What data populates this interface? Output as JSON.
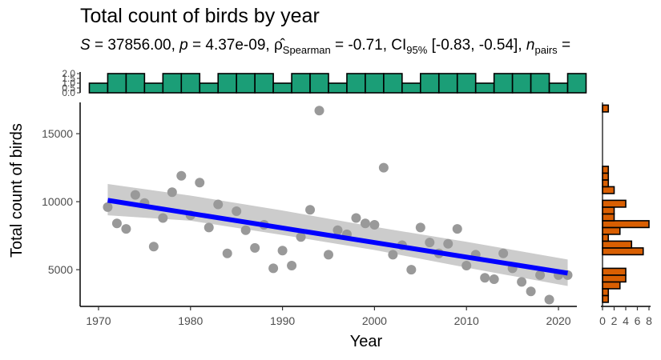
{
  "chart_data": {
    "type": "scatter",
    "title": "Total count of birds by year",
    "subtitle": {
      "s_label": "S",
      "s_value": "= 37856.00,",
      "p_label": "p",
      "p_value": "= 4.37e-09,",
      "rho_symbol": "ρ̂",
      "rho_sub": "Spearman",
      "rho_value": "= -0.71,",
      "ci_label": "CI",
      "ci_sub": "95%",
      "ci_value": "[-0.83, -0.54],",
      "n_label": "n",
      "n_sub": "pairs",
      "n_value": "="
    },
    "xlabel": "Year",
    "ylabel": "Total count of birds",
    "xlim": [
      1968,
      2022
    ],
    "ylim": [
      2300,
      17300
    ],
    "x_ticks": [
      "1970",
      "1980",
      "1990",
      "2000",
      "2010",
      "2020"
    ],
    "y_ticks": [
      "5000",
      "10000",
      "15000"
    ],
    "colors": {
      "points": "#999999",
      "trend_line": "#0000ff",
      "confidence_band": "#cccccc",
      "top_histogram": "#1b9e77",
      "right_histogram": "#d95f02"
    },
    "points": [
      {
        "x": 1971,
        "y": 9600
      },
      {
        "x": 1972,
        "y": 8400
      },
      {
        "x": 1973,
        "y": 8000
      },
      {
        "x": 1974,
        "y": 10500
      },
      {
        "x": 1975,
        "y": 9900
      },
      {
        "x": 1976,
        "y": 6700
      },
      {
        "x": 1977,
        "y": 8800
      },
      {
        "x": 1978,
        "y": 10700
      },
      {
        "x": 1979,
        "y": 11900
      },
      {
        "x": 1980,
        "y": 9000
      },
      {
        "x": 1981,
        "y": 11400
      },
      {
        "x": 1982,
        "y": 8100
      },
      {
        "x": 1983,
        "y": 9800
      },
      {
        "x": 1984,
        "y": 6200
      },
      {
        "x": 1985,
        "y": 9300
      },
      {
        "x": 1986,
        "y": 7900
      },
      {
        "x": 1987,
        "y": 6600
      },
      {
        "x": 1988,
        "y": 8300
      },
      {
        "x": 1989,
        "y": 5100
      },
      {
        "x": 1990,
        "y": 6400
      },
      {
        "x": 1991,
        "y": 5300
      },
      {
        "x": 1992,
        "y": 7400
      },
      {
        "x": 1993,
        "y": 9400
      },
      {
        "x": 1994,
        "y": 16700
      },
      {
        "x": 1995,
        "y": 6100
      },
      {
        "x": 1996,
        "y": 7900
      },
      {
        "x": 1997,
        "y": 7600
      },
      {
        "x": 1998,
        "y": 8800
      },
      {
        "x": 1999,
        "y": 8400
      },
      {
        "x": 2000,
        "y": 8300
      },
      {
        "x": 2001,
        "y": 12500
      },
      {
        "x": 2002,
        "y": 6100
      },
      {
        "x": 2003,
        "y": 6800
      },
      {
        "x": 2004,
        "y": 5000
      },
      {
        "x": 2005,
        "y": 8100
      },
      {
        "x": 2006,
        "y": 7000
      },
      {
        "x": 2007,
        "y": 6200
      },
      {
        "x": 2008,
        "y": 6900
      },
      {
        "x": 2009,
        "y": 8000
      },
      {
        "x": 2010,
        "y": 5300
      },
      {
        "x": 2011,
        "y": 6100
      },
      {
        "x": 2012,
        "y": 4400
      },
      {
        "x": 2013,
        "y": 4300
      },
      {
        "x": 2014,
        "y": 6200
      },
      {
        "x": 2015,
        "y": 5100
      },
      {
        "x": 2016,
        "y": 4100
      },
      {
        "x": 2017,
        "y": 3400
      },
      {
        "x": 2018,
        "y": 4600
      },
      {
        "x": 2019,
        "y": 2800
      },
      {
        "x": 2020,
        "y": 4600
      },
      {
        "x": 2021,
        "y": 4600
      }
    ],
    "trend_line": {
      "x": [
        1971,
        2021
      ],
      "y": [
        10100,
        4750
      ]
    },
    "confidence_band": {
      "x": [
        1971,
        1980,
        1990,
        2000,
        2010,
        2021
      ],
      "upper": [
        11300,
        10450,
        9350,
        8150,
        7050,
        5750
      ],
      "lower": [
        9000,
        8600,
        7550,
        6450,
        5150,
        3800
      ]
    },
    "top_histogram": {
      "ylim": [
        0,
        2
      ],
      "y_ticks": [
        "0.0",
        "0.5",
        "1.0",
        "1.5",
        "2.0"
      ],
      "bin_width": 2,
      "bins": [
        {
          "x": 1970,
          "count": 1
        },
        {
          "x": 1972,
          "count": 2
        },
        {
          "x": 1974,
          "count": 2
        },
        {
          "x": 1976,
          "count": 1
        },
        {
          "x": 1978,
          "count": 2
        },
        {
          "x": 1980,
          "count": 2
        },
        {
          "x": 1982,
          "count": 1
        },
        {
          "x": 1984,
          "count": 2
        },
        {
          "x": 1986,
          "count": 2
        },
        {
          "x": 1988,
          "count": 2
        },
        {
          "x": 1990,
          "count": 1
        },
        {
          "x": 1992,
          "count": 2
        },
        {
          "x": 1994,
          "count": 2
        },
        {
          "x": 1996,
          "count": 1
        },
        {
          "x": 1998,
          "count": 2
        },
        {
          "x": 2000,
          "count": 2
        },
        {
          "x": 2002,
          "count": 2
        },
        {
          "x": 2004,
          "count": 1
        },
        {
          "x": 2006,
          "count": 2
        },
        {
          "x": 2008,
          "count": 2
        },
        {
          "x": 2010,
          "count": 2
        },
        {
          "x": 2012,
          "count": 1
        },
        {
          "x": 2014,
          "count": 2
        },
        {
          "x": 2016,
          "count": 2
        },
        {
          "x": 2018,
          "count": 2
        },
        {
          "x": 2020,
          "count": 1
        },
        {
          "x": 2022,
          "count": 2
        }
      ]
    },
    "right_histogram": {
      "xlim": [
        0,
        8
      ],
      "x_ticks": [
        "0",
        "2",
        "4",
        "6",
        "8"
      ],
      "bins": [
        {
          "y0": 2600,
          "y1": 3100,
          "count": 1
        },
        {
          "y0": 3100,
          "y1": 3600,
          "count": 1
        },
        {
          "y0": 3600,
          "y1": 4100,
          "count": 3
        },
        {
          "y0": 4100,
          "y1": 4600,
          "count": 4
        },
        {
          "y0": 4600,
          "y1": 5100,
          "count": 4
        },
        {
          "y0": 5100,
          "y1": 5600,
          "count": 0
        },
        {
          "y0": 5600,
          "y1": 6100,
          "count": 0
        },
        {
          "y0": 6100,
          "y1": 6600,
          "count": 7
        },
        {
          "y0": 6600,
          "y1": 7100,
          "count": 5
        },
        {
          "y0": 7100,
          "y1": 7600,
          "count": 1
        },
        {
          "y0": 7600,
          "y1": 8100,
          "count": 3
        },
        {
          "y0": 8100,
          "y1": 8600,
          "count": 8
        },
        {
          "y0": 8600,
          "y1": 9100,
          "count": 2
        },
        {
          "y0": 9100,
          "y1": 9600,
          "count": 2
        },
        {
          "y0": 9600,
          "y1": 10100,
          "count": 4
        },
        {
          "y0": 10100,
          "y1": 10600,
          "count": 0
        },
        {
          "y0": 10600,
          "y1": 11100,
          "count": 2
        },
        {
          "y0": 11100,
          "y1": 11600,
          "count": 1
        },
        {
          "y0": 11600,
          "y1": 12100,
          "count": 1
        },
        {
          "y0": 12100,
          "y1": 12600,
          "count": 1
        },
        {
          "y0": 16600,
          "y1": 17100,
          "count": 1
        }
      ]
    }
  }
}
